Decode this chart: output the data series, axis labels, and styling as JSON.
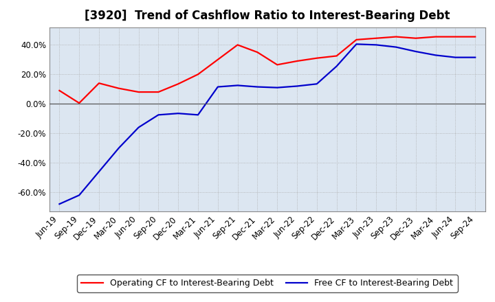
{
  "title": "[3920]  Trend of Cashflow Ratio to Interest-Bearing Debt",
  "x_labels": [
    "Jun-19",
    "Sep-19",
    "Dec-19",
    "Mar-20",
    "Jun-20",
    "Sep-20",
    "Dec-20",
    "Mar-21",
    "Jun-21",
    "Sep-21",
    "Dec-21",
    "Mar-22",
    "Jun-22",
    "Sep-22",
    "Dec-22",
    "Mar-23",
    "Jun-23",
    "Sep-23",
    "Dec-23",
    "Mar-24",
    "Jun-24",
    "Sep-24"
  ],
  "operating_cf": [
    0.09,
    0.005,
    0.14,
    0.105,
    0.08,
    0.08,
    0.135,
    0.2,
    0.3,
    0.4,
    0.35,
    0.265,
    0.29,
    0.31,
    0.325,
    0.435,
    0.445,
    0.455,
    0.445,
    0.455,
    0.455,
    0.455
  ],
  "free_cf": [
    -0.68,
    -0.62,
    -0.46,
    -0.3,
    -0.16,
    -0.075,
    -0.065,
    -0.075,
    0.115,
    0.125,
    0.115,
    0.11,
    0.12,
    0.135,
    0.255,
    0.405,
    0.4,
    0.385,
    0.355,
    0.33,
    0.315,
    0.315
  ],
  "operating_color": "#ff0000",
  "free_color": "#0000cc",
  "background_color": "#ffffff",
  "plot_bg_color": "#dce6f1",
  "grid_color": "#aaaaaa",
  "zero_line_color": "#555555",
  "ylim": [
    -0.73,
    0.52
  ],
  "yticks": [
    -0.6,
    -0.4,
    -0.2,
    0.0,
    0.2,
    0.4
  ],
  "legend_op": "Operating CF to Interest-Bearing Debt",
  "legend_free": "Free CF to Interest-Bearing Debt",
  "title_fontsize": 12,
  "tick_fontsize": 8.5,
  "legend_fontsize": 9
}
